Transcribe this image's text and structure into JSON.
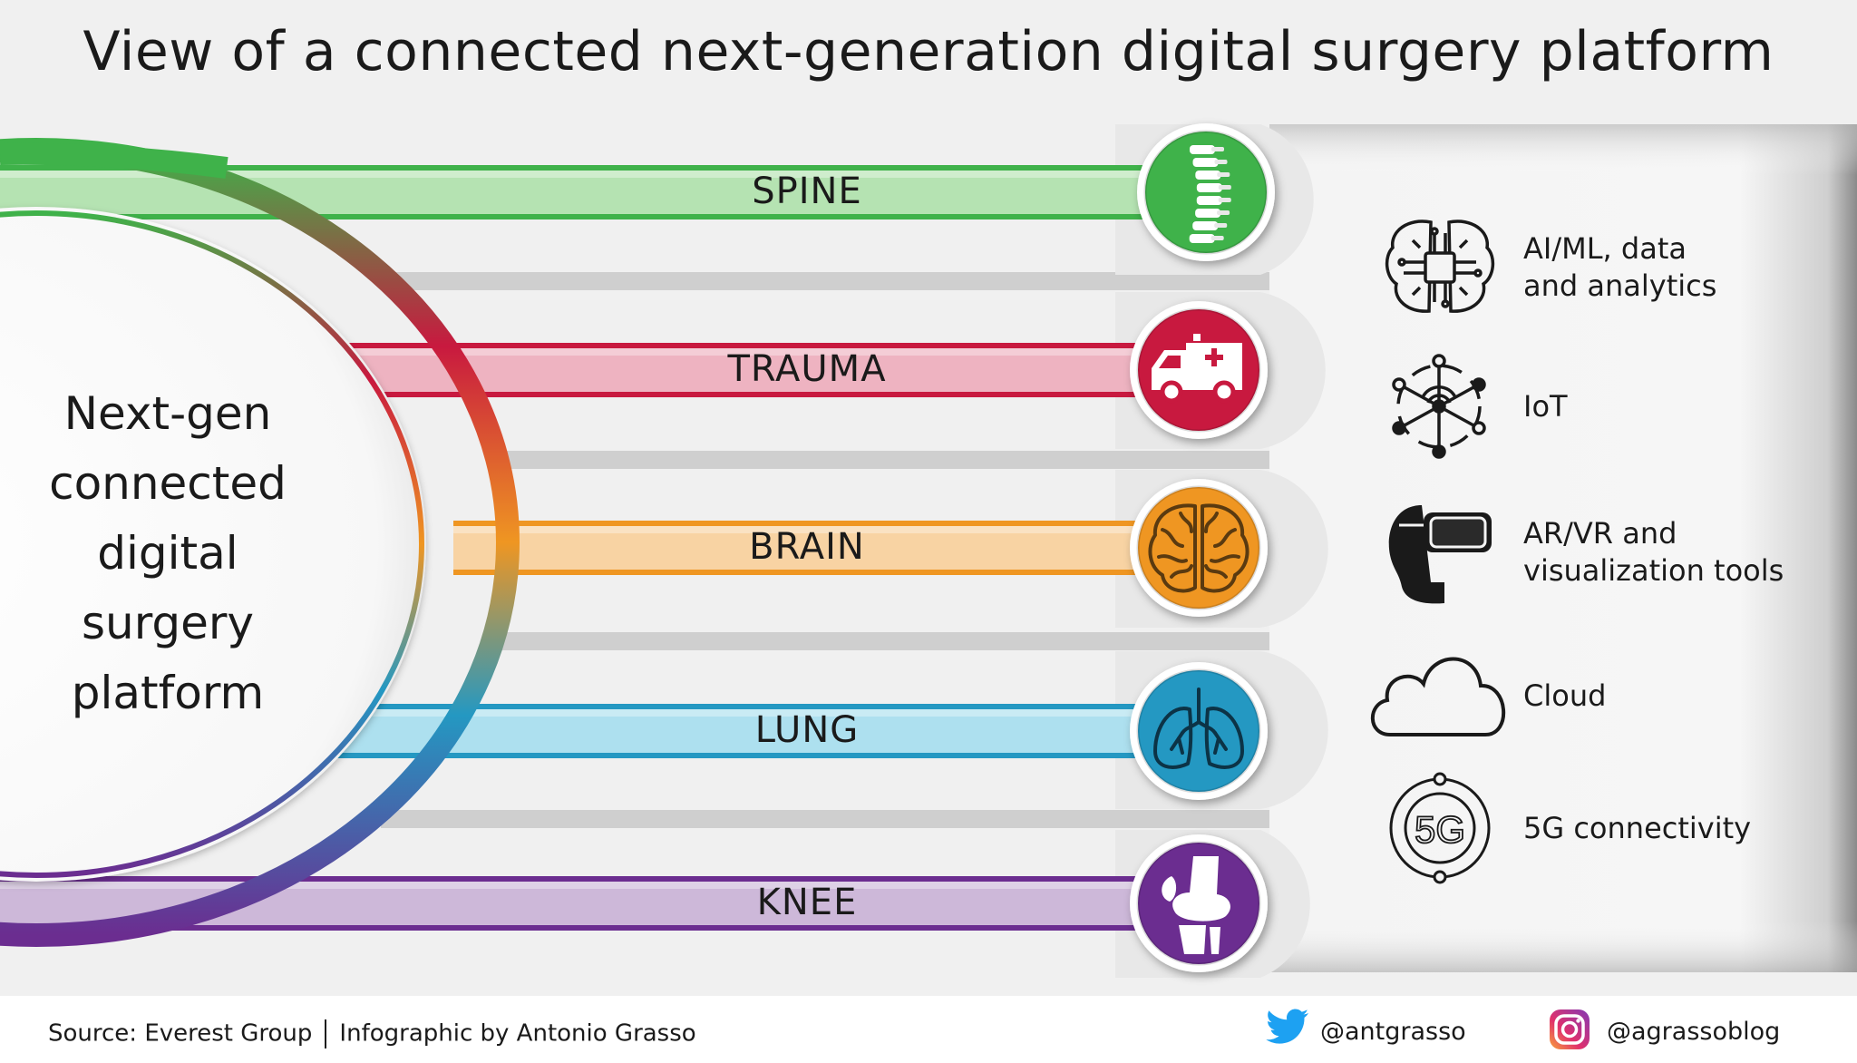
{
  "title": "View of a connected next-generation digital surgery platform",
  "hub": {
    "lines": [
      "Next-gen",
      "connected",
      "digital",
      "surgery",
      "platform"
    ]
  },
  "bands": [
    {
      "label": "SPINE",
      "color": "#3fb24a",
      "light": "#b5e3b2",
      "icon": "spine-icon"
    },
    {
      "label": "TRAUMA",
      "color": "#c8193f",
      "light": "#eeb3c1",
      "icon": "ambulance-icon"
    },
    {
      "label": "BRAIN",
      "color": "#ef9622",
      "light": "#f8d3a3",
      "icon": "brain-icon"
    },
    {
      "label": "LUNG",
      "color": "#2498c2",
      "light": "#ade0ef",
      "icon": "lungs-icon"
    },
    {
      "label": "KNEE",
      "color": "#6b2d90",
      "light": "#cdb8d9",
      "icon": "knee-joint-icon"
    }
  ],
  "technologies": [
    {
      "label": "AI/ML, data\nand analytics",
      "icon": "ai-chip-brain-icon"
    },
    {
      "label": "IoT",
      "icon": "iot-network-icon"
    },
    {
      "label": "AR/VR and\nvisualization tools",
      "icon": "vr-headset-icon"
    },
    {
      "label": "Cloud",
      "icon": "cloud-icon"
    },
    {
      "label": "5G connectivity",
      "icon": "5g-icon",
      "glyph": "5G"
    }
  ],
  "footer": {
    "source": "Source: Everest Group",
    "credit": "Infographic by Antonio Grasso",
    "twitter": "@antgrasso",
    "instagram": "@agrassoblog"
  }
}
